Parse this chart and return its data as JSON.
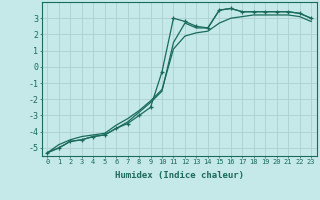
{
  "xlabel": "Humidex (Indice chaleur)",
  "bg_color": "#c5e8e8",
  "line_color": "#1a6b5a",
  "grid_color": "#aed0d0",
  "xlim": [
    -0.5,
    23.5
  ],
  "ylim": [
    -5.5,
    4.0
  ],
  "hours": [
    0,
    1,
    2,
    3,
    4,
    5,
    6,
    7,
    8,
    9,
    10,
    11,
    12,
    13,
    14,
    15,
    16,
    17,
    18,
    19,
    20,
    21,
    22,
    23
  ],
  "line_marked": [
    -5.3,
    -5.0,
    -4.6,
    -4.5,
    -4.3,
    -4.2,
    -3.8,
    -3.5,
    -3.0,
    -2.5,
    -0.3,
    3.0,
    2.8,
    2.5,
    2.4,
    3.5,
    3.6,
    3.4,
    3.4,
    3.4,
    3.4,
    3.4,
    3.3,
    3.0
  ],
  "line_upper": [
    -5.3,
    -5.0,
    -4.6,
    -4.5,
    -4.3,
    -4.2,
    -3.8,
    -3.4,
    -2.8,
    -2.2,
    -1.5,
    1.5,
    2.7,
    2.4,
    2.4,
    3.5,
    3.6,
    3.4,
    3.4,
    3.4,
    3.4,
    3.4,
    3.3,
    3.0
  ],
  "line_lower": [
    -5.3,
    -4.8,
    -4.5,
    -4.3,
    -4.2,
    -4.1,
    -3.6,
    -3.2,
    -2.7,
    -2.1,
    -1.4,
    1.1,
    1.9,
    2.1,
    2.2,
    2.7,
    3.0,
    3.1,
    3.2,
    3.2,
    3.2,
    3.2,
    3.1,
    2.8
  ],
  "xticks": [
    0,
    1,
    2,
    3,
    4,
    5,
    6,
    7,
    8,
    9,
    10,
    11,
    12,
    13,
    14,
    15,
    16,
    17,
    18,
    19,
    20,
    21,
    22,
    23
  ],
  "yticks": [
    -5,
    -4,
    -3,
    -2,
    -1,
    0,
    1,
    2,
    3
  ]
}
